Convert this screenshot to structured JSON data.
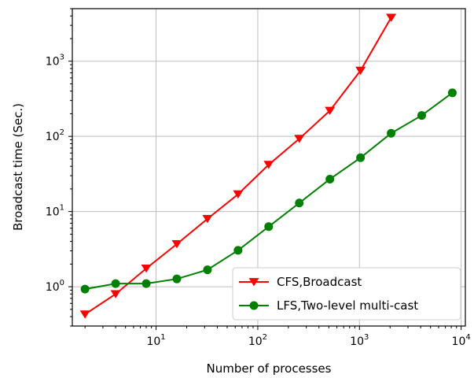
{
  "chart_data": {
    "type": "line",
    "title": "",
    "xlabel": "Number of processes",
    "ylabel": "Broadcast time (Sec.)",
    "xscale": "log",
    "yscale": "log",
    "xlim": [
      1.5,
      11000
    ],
    "ylim": [
      0.3,
      5000
    ],
    "grid": true,
    "legend_position": "lower-right",
    "x_ticks": [
      {
        "value": 10,
        "base": "10",
        "exp": "1"
      },
      {
        "value": 100,
        "base": "10",
        "exp": "2"
      },
      {
        "value": 1000,
        "base": "10",
        "exp": "3"
      },
      {
        "value": 10000,
        "base": "10",
        "exp": "4"
      }
    ],
    "y_ticks": [
      {
        "value": 1,
        "base": "10",
        "exp": "0"
      },
      {
        "value": 10,
        "base": "10",
        "exp": "1"
      },
      {
        "value": 100,
        "base": "10",
        "exp": "2"
      },
      {
        "value": 1000,
        "base": "10",
        "exp": "3"
      }
    ],
    "series": [
      {
        "name": "CFS,Broadcast",
        "color": "#ff0000",
        "marker": "triangle-down",
        "x": [
          2,
          4,
          8,
          16,
          32,
          64,
          128,
          256,
          512,
          1024,
          2048
        ],
        "y": [
          0.43,
          0.8,
          1.75,
          3.7,
          8,
          17,
          42,
          93,
          220,
          750,
          3800
        ]
      },
      {
        "name": "LFS,Two-level multi-cast",
        "color": "#008000",
        "marker": "circle",
        "x": [
          2,
          4,
          8,
          16,
          32,
          64,
          128,
          256,
          512,
          1024,
          2048,
          4096,
          8192
        ],
        "y": [
          0.93,
          1.1,
          1.1,
          1.27,
          1.68,
          3.05,
          6.3,
          13,
          27,
          52,
          110,
          190,
          380
        ]
      }
    ]
  }
}
